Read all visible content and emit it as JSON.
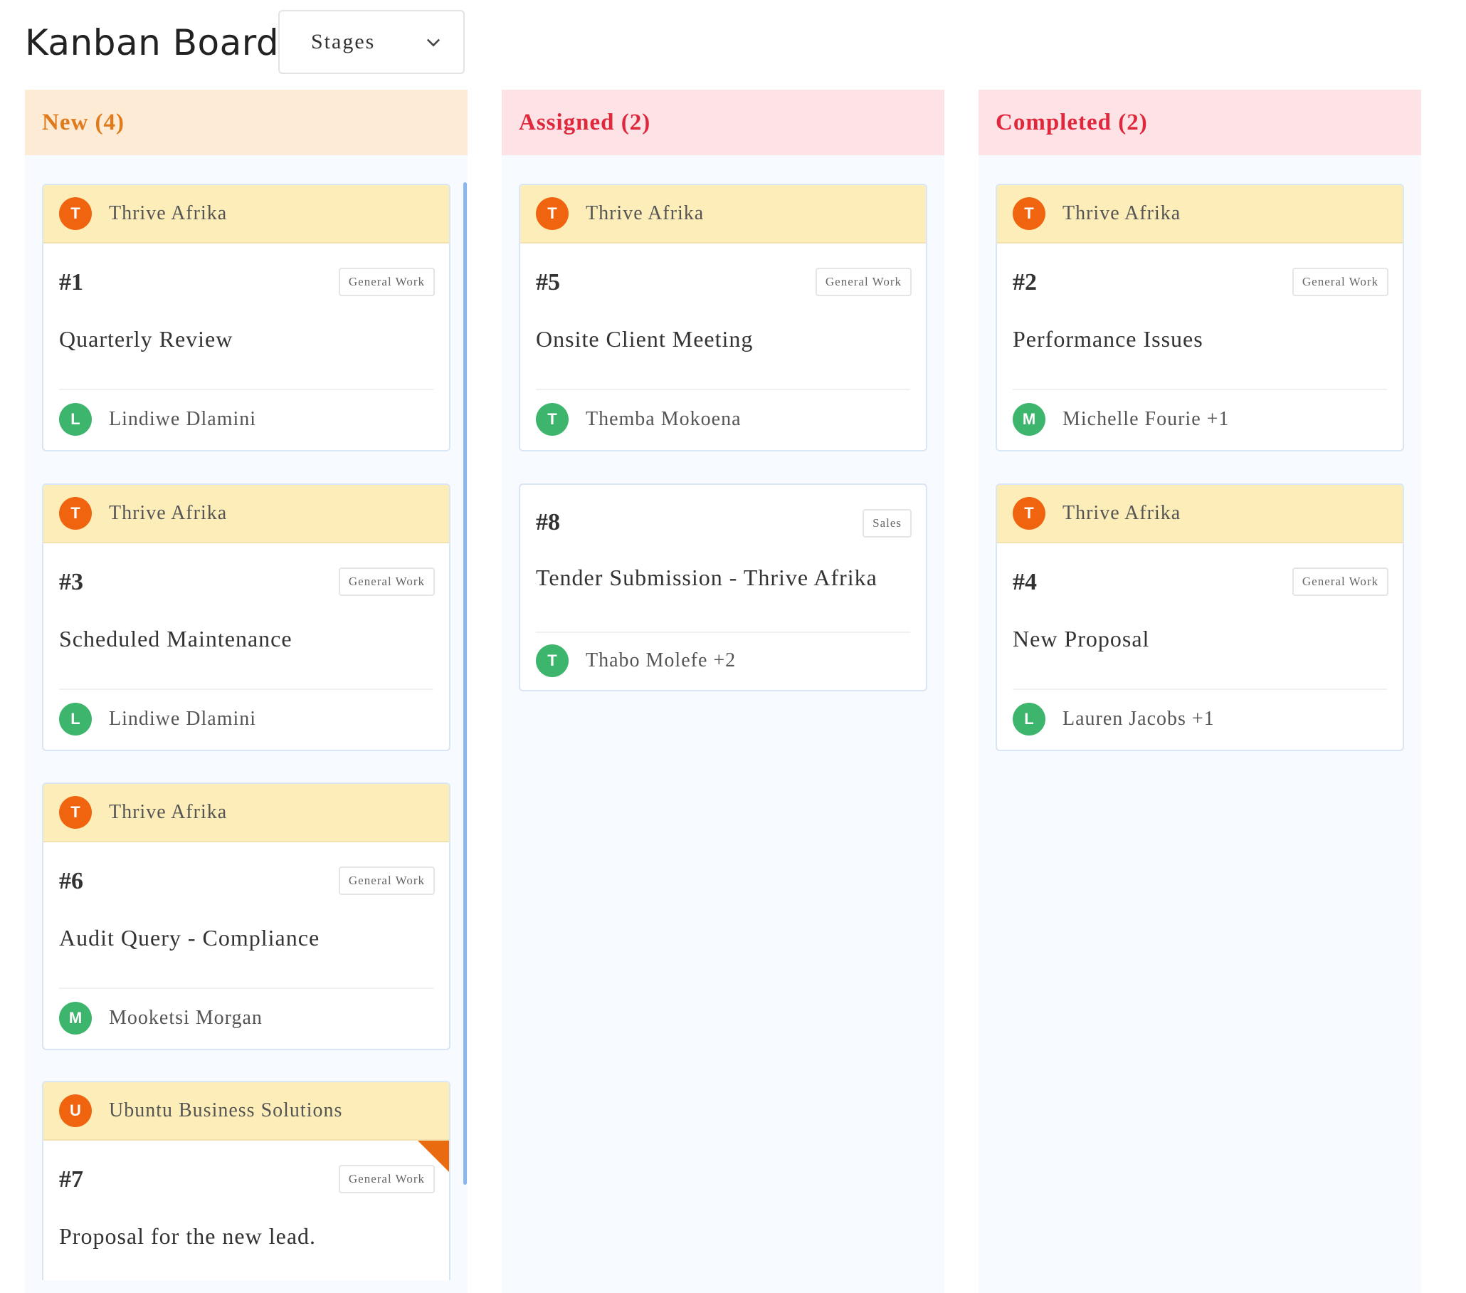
{
  "header": {
    "title": "Kanban Board",
    "stage_select": {
      "value": "Stages"
    }
  },
  "columns": [
    {
      "title": "New (4)",
      "cards": [
        {
          "company": "Thrive Afrika",
          "company_initial": "T",
          "id": "#1",
          "tag": "General Work",
          "title": "Quarterly Review",
          "assignee": "Lindiwe Dlamini",
          "assignee_initial": "L"
        },
        {
          "company": "Thrive Afrika",
          "company_initial": "T",
          "id": "#3",
          "tag": "General Work",
          "title": "Scheduled Maintenance",
          "assignee": "Lindiwe Dlamini",
          "assignee_initial": "L"
        },
        {
          "company": "Thrive Afrika",
          "company_initial": "T",
          "id": "#6",
          "tag": "General Work",
          "title": "Audit Query - Compliance",
          "assignee": "Mooketsi Morgan",
          "assignee_initial": "M"
        },
        {
          "company": "Ubuntu Business Solutions",
          "company_initial": "U",
          "id": "#7",
          "tag": "General Work",
          "title": "Proposal for the new lead."
        }
      ]
    },
    {
      "title": "Assigned (2)",
      "cards": [
        {
          "company": "Thrive Afrika",
          "company_initial": "T",
          "id": "#5",
          "tag": "General Work",
          "title": "Onsite Client Meeting",
          "assignee": "Themba Mokoena",
          "assignee_initial": "T"
        },
        {
          "id": "#8",
          "tag": "Sales",
          "title": "Tender Submission - Thrive Afrika",
          "assignee": "Thabo Molefe +2",
          "assignee_initial": "T"
        }
      ]
    },
    {
      "title": "Completed (2)",
      "cards": [
        {
          "company": "Thrive Afrika",
          "company_initial": "T",
          "id": "#2",
          "tag": "General Work",
          "title": "Performance Issues",
          "assignee": "Michelle Fourie +1",
          "assignee_initial": "M"
        },
        {
          "company": "Thrive Afrika",
          "company_initial": "T",
          "id": "#4",
          "tag": "General Work",
          "title": "New Proposal",
          "assignee": "Lauren Jacobs +1",
          "assignee_initial": "L"
        }
      ]
    }
  ],
  "colors": {
    "new_header_bg": "#fdebd6",
    "new_header_text": "#e07b1d",
    "alert_header_bg": "#fde3e6",
    "alert_header_text": "#e0283c",
    "company_strip": "#fdedb8",
    "company_avatar": "#f0640f",
    "assignee_avatar": "#3db56d",
    "scroll_indicator": "#8ab7ee"
  },
  "icons": {
    "stage_select": "chevron-down-icon",
    "priority_flag": "corner-flag-icon"
  }
}
